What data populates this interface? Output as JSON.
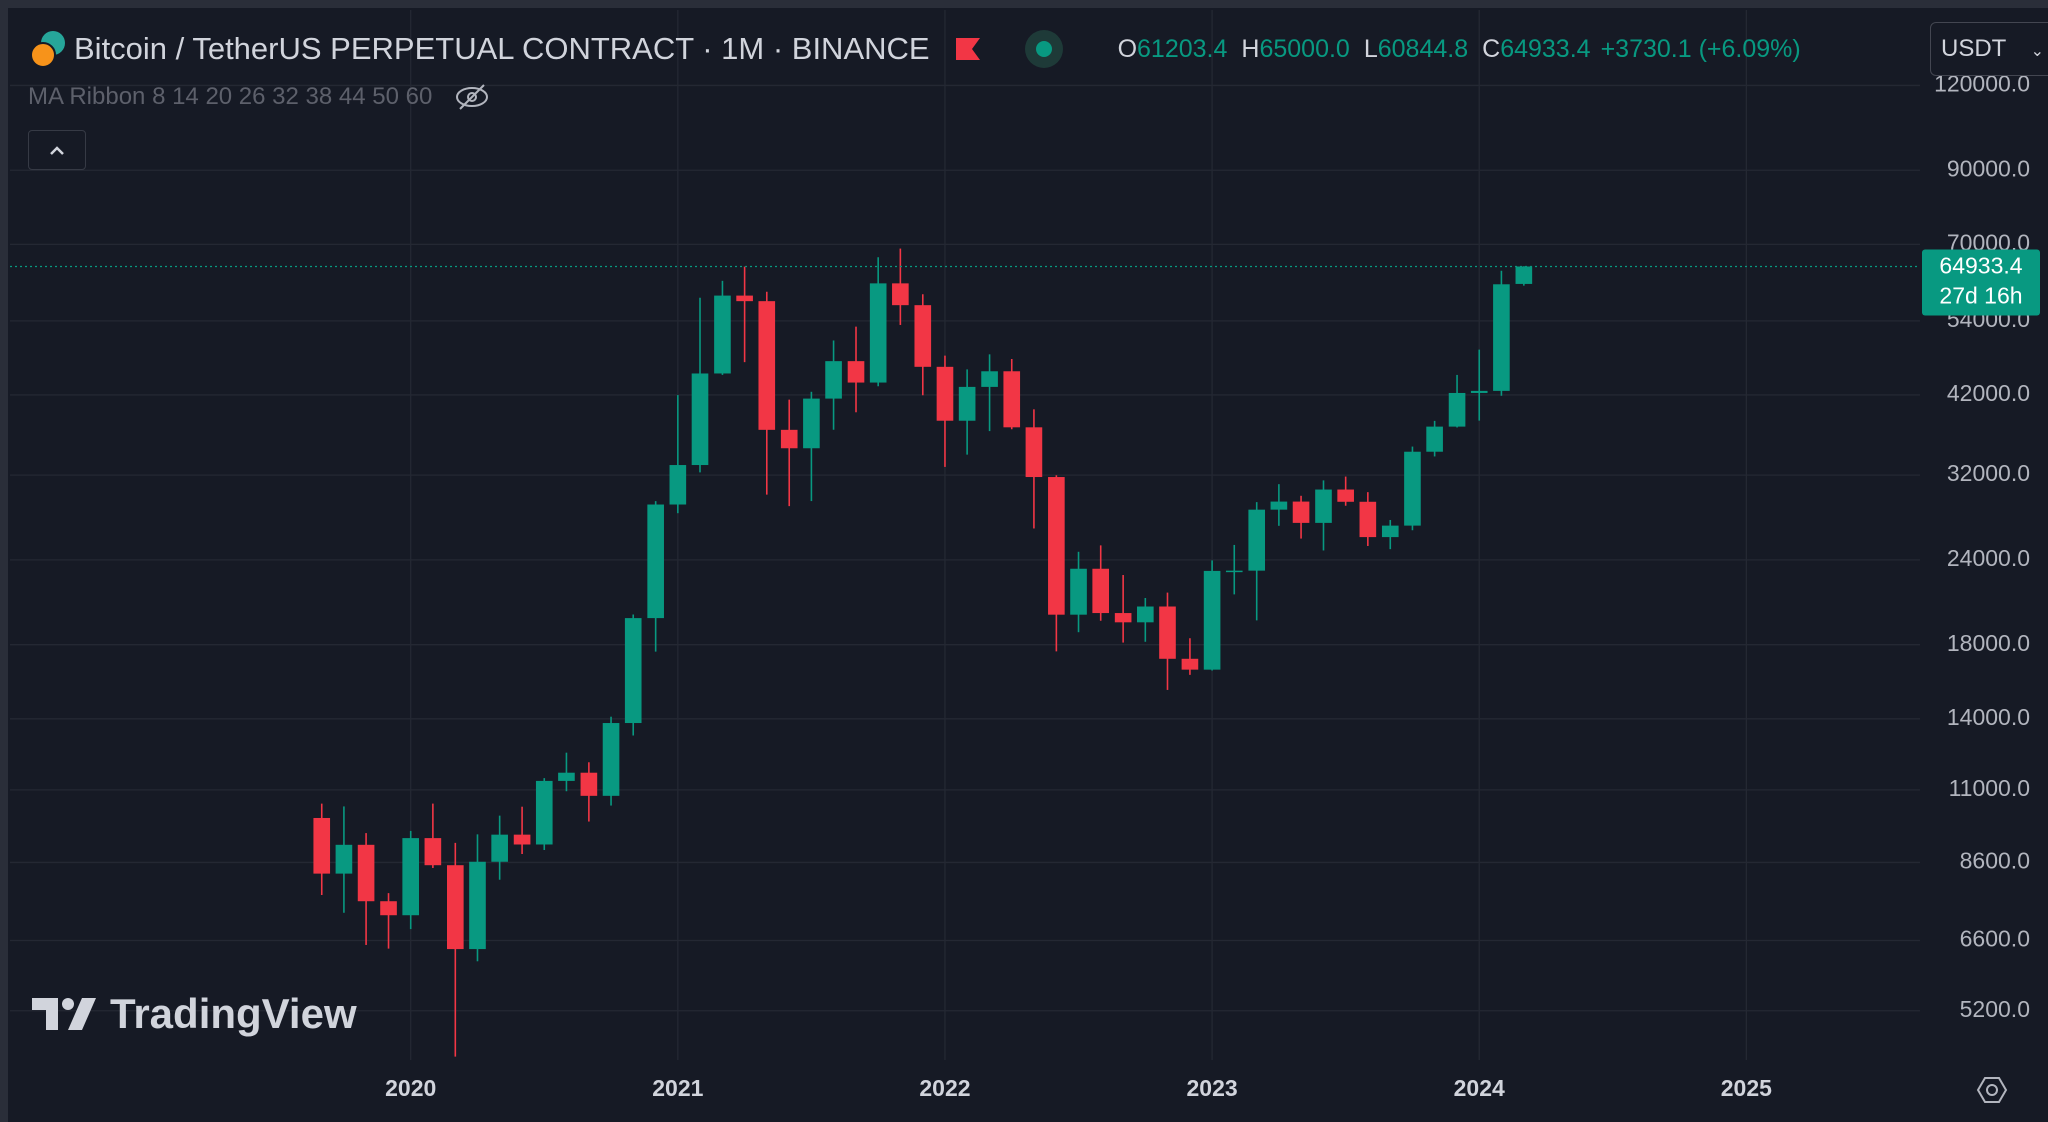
{
  "header": {
    "title": "Bitcoin / TetherUS PERPETUAL CONTRACT · 1M · BINANCE",
    "o_label": "O",
    "open": "61203.4",
    "h_label": "H",
    "high": "65000.0",
    "l_label": "L",
    "low": "60844.8",
    "c_label": "C",
    "close": "64933.4",
    "change": "+3730.1 (+6.09%)",
    "currency": "USDT",
    "indicator": "MA Ribbon 8 14 20 26 32 38 44 50 60",
    "countdown": "27d 16h",
    "watermark": "TradingView"
  },
  "chart_data": {
    "type": "candlestick",
    "up_color": "#089981",
    "down_color": "#f23645",
    "log_scale": true,
    "grid": true,
    "x": [
      2019.667,
      2019.75,
      2019.833,
      2019.917,
      2020,
      2020.083,
      2020.167,
      2020.25,
      2020.333,
      2020.417,
      2020.5,
      2020.583,
      2020.667,
      2020.75,
      2020.833,
      2020.917,
      2021,
      2021.083,
      2021.167,
      2021.25,
      2021.333,
      2021.417,
      2021.5,
      2021.583,
      2021.667,
      2021.75,
      2021.833,
      2021.917,
      2022,
      2022.083,
      2022.167,
      2022.25,
      2022.333,
      2022.417,
      2022.5,
      2022.583,
      2022.667,
      2022.75,
      2022.833,
      2022.917,
      2023,
      2023.083,
      2023.167,
      2023.25,
      2023.333,
      2023.417,
      2023.5,
      2023.583,
      2023.667,
      2023.75,
      2023.833,
      2023.917,
      2024,
      2024.083,
      2024.167
    ],
    "open": [
      10000,
      8280,
      9130,
      7540,
      7190,
      9340,
      8520,
      6410,
      8620,
      9450,
      9140,
      11340,
      11660,
      10780,
      13800,
      19700,
      28960,
      33110,
      45170,
      58830,
      57730,
      37310,
      35050,
      41480,
      47100,
      43800,
      61320,
      56950,
      46200,
      38480,
      43160,
      45510,
      37630,
      31790,
      19930,
      23290,
      20040,
      19420,
      20490,
      17160,
      16540,
      23120,
      23140,
      28460,
      29250,
      27210,
      30470,
      29230,
      25930,
      26960,
      34640,
      37720,
      42280,
      42580,
      61203.4
    ],
    "high": [
      10500,
      10400,
      9500,
      7750,
      9570,
      10500,
      9190,
      9460,
      10080,
      10390,
      11450,
      12480,
      12080,
      14100,
      19940,
      29300,
      41980,
      58400,
      61850,
      64900,
      59590,
      41330,
      42450,
      50520,
      52950,
      67000,
      69000,
      59100,
      47990,
      45800,
      48200,
      47450,
      40000,
      31980,
      24670,
      25210,
      22800,
      21090,
      21480,
      18400,
      23960,
      25250,
      29190,
      31030,
      29830,
      31430,
      31840,
      30200,
      27480,
      35250,
      38460,
      44950,
      48970,
      64000,
      65000
    ],
    "low": [
      7700,
      7250,
      6500,
      6420,
      6860,
      8440,
      4450,
      6150,
      8110,
      8850,
      8970,
      10950,
      9880,
      10430,
      13230,
      17580,
      28120,
      32300,
      44950,
      46940,
      29950,
      28800,
      29300,
      37320,
      39600,
      43250,
      53250,
      41950,
      32900,
      34300,
      37150,
      37380,
      26700,
      17600,
      18780,
      19520,
      18130,
      18180,
      15440,
      16250,
      16490,
      21350,
      19550,
      26940,
      25800,
      24780,
      28840,
      25160,
      24890,
      26540,
      34090,
      37610,
      38500,
      41880,
      60844.8
    ],
    "close": [
      8280,
      9130,
      7540,
      7190,
      9340,
      8520,
      6410,
      8620,
      9450,
      9140,
      11340,
      11660,
      10780,
      13800,
      19700,
      28960,
      33110,
      45170,
      58830,
      57730,
      37310,
      35050,
      41480,
      47100,
      43800,
      61320,
      56950,
      46200,
      38480,
      43160,
      45510,
      37630,
      31790,
      19930,
      23290,
      20040,
      19420,
      20490,
      17160,
      16540,
      23120,
      23140,
      28460,
      29250,
      27210,
      30470,
      29230,
      25930,
      26960,
      34640,
      37720,
      42280,
      42580,
      61130,
      64933.4
    ],
    "xlim": [
      2018.5,
      2025.65
    ],
    "xticks": [
      2020,
      2021,
      2022,
      2023,
      2024,
      2025
    ],
    "ylim": [
      4400,
      155000
    ],
    "yticks": [
      {
        "value": 5200,
        "label": "5200.0"
      },
      {
        "value": 6600,
        "label": "6600.0"
      },
      {
        "value": 8600,
        "label": "8600.0"
      },
      {
        "value": 11000,
        "label": "11000.0"
      },
      {
        "value": 14000,
        "label": "14000.0"
      },
      {
        "value": 18000,
        "label": "18000.0"
      },
      {
        "value": 24000,
        "label": "24000.0"
      },
      {
        "value": 32000,
        "label": "32000.0"
      },
      {
        "value": 42000,
        "label": "42000.0"
      },
      {
        "value": 54000,
        "label": "54000.0"
      },
      {
        "value": 70000,
        "label": "70000.0"
      },
      {
        "value": 90000,
        "label": "90000.0"
      },
      {
        "value": 120000,
        "label": "120000.0"
      }
    ]
  }
}
